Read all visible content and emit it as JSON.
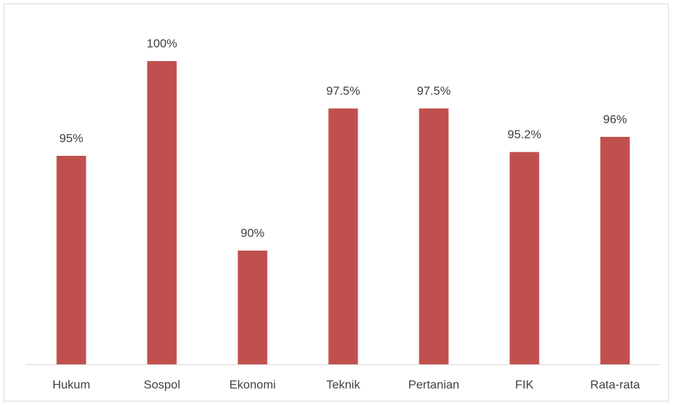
{
  "chart_data": {
    "type": "bar",
    "categories": [
      "Hukum",
      "Sospol",
      "Ekonomi",
      "Teknik",
      "Pertanian",
      "FIK",
      "Rata-rata"
    ],
    "values": [
      95,
      100,
      90,
      97.5,
      97.5,
      95.2,
      96
    ],
    "value_labels": [
      "95%",
      "100%",
      "90%",
      "97.5%",
      "97.5%",
      "95.2%",
      "96%"
    ],
    "color": "#c0504d",
    "ylim": [
      84,
      101
    ]
  }
}
